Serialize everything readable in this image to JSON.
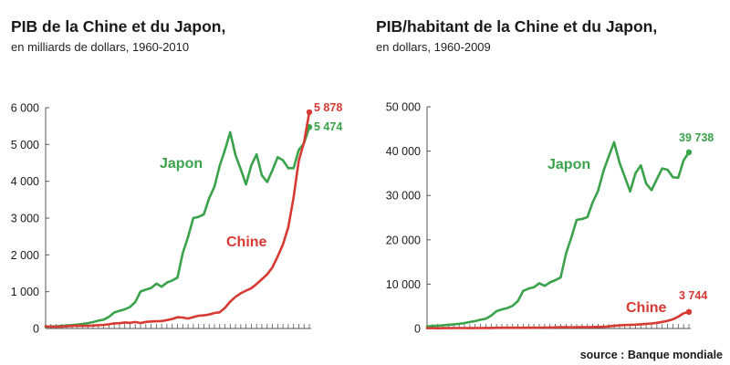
{
  "source_label": "source : Banque mondiale",
  "colors": {
    "japan": "#3aa24a",
    "china": "#d63a33",
    "axis": "#555555",
    "text": "#1a1a1a"
  },
  "chart_data": [
    {
      "type": "line",
      "title": "PIB de la Chine et du Japon,",
      "subtitle": "en milliards de dollars, 1960-2010",
      "xlabel": "",
      "ylabel": "",
      "x": [
        1960,
        1961,
        1962,
        1963,
        1964,
        1965,
        1966,
        1967,
        1968,
        1969,
        1970,
        1971,
        1972,
        1973,
        1974,
        1975,
        1976,
        1977,
        1978,
        1979,
        1980,
        1981,
        1982,
        1983,
        1984,
        1985,
        1986,
        1987,
        1988,
        1989,
        1990,
        1991,
        1992,
        1993,
        1994,
        1995,
        1996,
        1997,
        1998,
        1999,
        2000,
        2001,
        2002,
        2003,
        2004,
        2005,
        2006,
        2007,
        2008,
        2009,
        2010
      ],
      "xlim": [
        1960,
        2010
      ],
      "ylim": [
        0,
        6000
      ],
      "yticks": [
        0,
        1000,
        2000,
        3000,
        4000,
        5000,
        6000
      ],
      "ytick_labels": [
        "0",
        "1 000",
        "2 000",
        "3 000",
        "4 000",
        "5 000",
        "6 000"
      ],
      "grid": false,
      "series": [
        {
          "name": "Japon",
          "color": "#3aa24a",
          "end_label": "5 474",
          "values": [
            44,
            54,
            60,
            69,
            82,
            91,
            106,
            124,
            147,
            173,
            212,
            240,
            318,
            433,
            480,
            521,
            586,
            722,
            1003,
            1055,
            1100,
            1218,
            1135,
            1247,
            1305,
            1384,
            2051,
            2486,
            3000,
            3033,
            3104,
            3537,
            3853,
            4415,
            4850,
            5334,
            4706,
            4324,
            3915,
            4433,
            4731,
            4160,
            3980,
            4300,
            4655,
            4572,
            4357,
            4356,
            4849,
            5035,
            5474
          ]
        },
        {
          "name": "Chine",
          "color": "#d63a33",
          "end_label": "5 878",
          "values": [
            60,
            50,
            47,
            51,
            59,
            70,
            77,
            73,
            71,
            79,
            92,
            99,
            113,
            138,
            144,
            163,
            154,
            175,
            149,
            178,
            190,
            196,
            203,
            228,
            258,
            307,
            298,
            270,
            309,
            346,
            357,
            379,
            422,
            440,
            561,
            732,
            860,
            958,
            1029,
            1094,
            1211,
            1339,
            1471,
            1661,
            1955,
            2286,
            2752,
            3552,
            4558,
            5059,
            5878
          ]
        }
      ]
    },
    {
      "type": "line",
      "title": "PIB/habitant de la Chine et du Japon,",
      "subtitle": "en dollars, 1960-2009",
      "xlabel": "",
      "ylabel": "",
      "x": [
        1960,
        1961,
        1962,
        1963,
        1964,
        1965,
        1966,
        1967,
        1968,
        1969,
        1970,
        1971,
        1972,
        1973,
        1974,
        1975,
        1976,
        1977,
        1978,
        1979,
        1980,
        1981,
        1982,
        1983,
        1984,
        1985,
        1986,
        1987,
        1988,
        1989,
        1990,
        1991,
        1992,
        1993,
        1994,
        1995,
        1996,
        1997,
        1998,
        1999,
        2000,
        2001,
        2002,
        2003,
        2004,
        2005,
        2006,
        2007,
        2008,
        2009
      ],
      "xlim": [
        1960,
        2009
      ],
      "ylim": [
        0,
        50000
      ],
      "yticks": [
        0,
        10000,
        20000,
        30000,
        40000,
        50000
      ],
      "ytick_labels": [
        "0",
        "10 000",
        "20 000",
        "30 000",
        "40 000",
        "50 000"
      ],
      "grid": false,
      "series": [
        {
          "name": "Japon",
          "color": "#3aa24a",
          "end_label": "39 738",
          "values": [
            479,
            564,
            636,
            718,
            835,
            918,
            1059,
            1228,
            1451,
            1669,
            1967,
            2200,
            2900,
            3900,
            4300,
            4600,
            5100,
            6200,
            8500,
            9000,
            9300,
            10200,
            9600,
            10400,
            10900,
            11500,
            16900,
            20500,
            24500,
            24700,
            25100,
            28500,
            31000,
            35500,
            38800,
            42000,
            37400,
            34200,
            30900,
            35000,
            36800,
            32700,
            31200,
            33700,
            36100,
            35800,
            34100,
            34000,
            37900,
            39738
          ]
        },
        {
          "name": "Chine",
          "color": "#d63a33",
          "end_label": "3 744",
          "values": [
            92,
            76,
            71,
            74,
            85,
            98,
            104,
            96,
            91,
            100,
            112,
            118,
            132,
            157,
            160,
            178,
            165,
            185,
            155,
            183,
            193,
            197,
            203,
            225,
            250,
            293,
            279,
            250,
            283,
            311,
            314,
            330,
            362,
            373,
            469,
            604,
            703,
            774,
            821,
            865,
            949,
            1042,
            1135,
            1274,
            1490,
            1731,
            2069,
            2651,
            3414,
            3744
          ]
        }
      ]
    }
  ]
}
